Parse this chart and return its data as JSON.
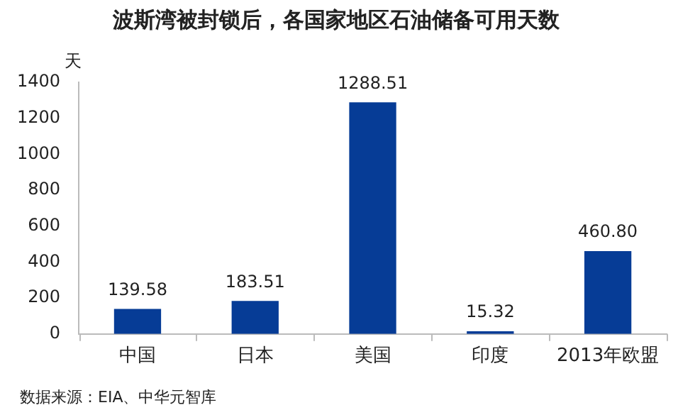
{
  "chart_data": {
    "type": "bar",
    "title": "波斯湾被封锁后，各国家地区石油储备可用天数",
    "ylabel": "天",
    "categories": [
      "中国",
      "日本",
      "美国",
      "印度",
      "2013年欧盟"
    ],
    "values": [
      139.58,
      183.51,
      1288.51,
      15.32,
      460.8
    ],
    "value_labels": [
      "139.58",
      "183.51",
      "1288.51",
      "15.32",
      "460.80"
    ],
    "color": "#063c96",
    "ylim": [
      0,
      1400
    ],
    "yticks": [
      0,
      200,
      400,
      600,
      800,
      1000,
      1200,
      1400
    ],
    "grid": false,
    "legend": false,
    "annotations": [
      "数据来源：EIA、中华元智库"
    ]
  }
}
